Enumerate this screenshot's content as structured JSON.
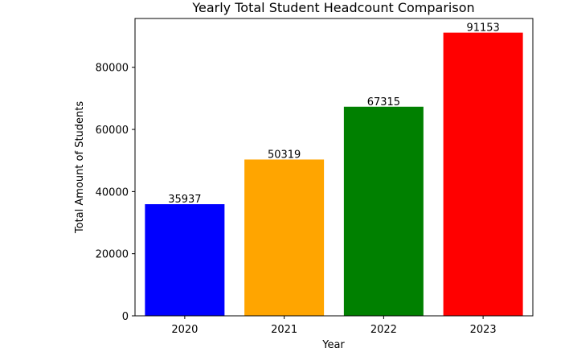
{
  "chart_data": {
    "type": "bar",
    "title": "Yearly Total Student Headcount Comparison",
    "xlabel": "Year",
    "ylabel": "Total Amount of Students",
    "categories": [
      "2020",
      "2021",
      "2022",
      "2023"
    ],
    "values": [
      35937,
      50319,
      67315,
      91153
    ],
    "colors": [
      "#0000ff",
      "#ffa500",
      "#008000",
      "#ff0000"
    ],
    "ylim": [
      0,
      95714
    ],
    "yticks": [
      0,
      20000,
      40000,
      60000,
      80000
    ],
    "ytick_labels": [
      "0",
      "20000",
      "40000",
      "60000",
      "80000"
    ],
    "grid": false,
    "legend": "none"
  }
}
